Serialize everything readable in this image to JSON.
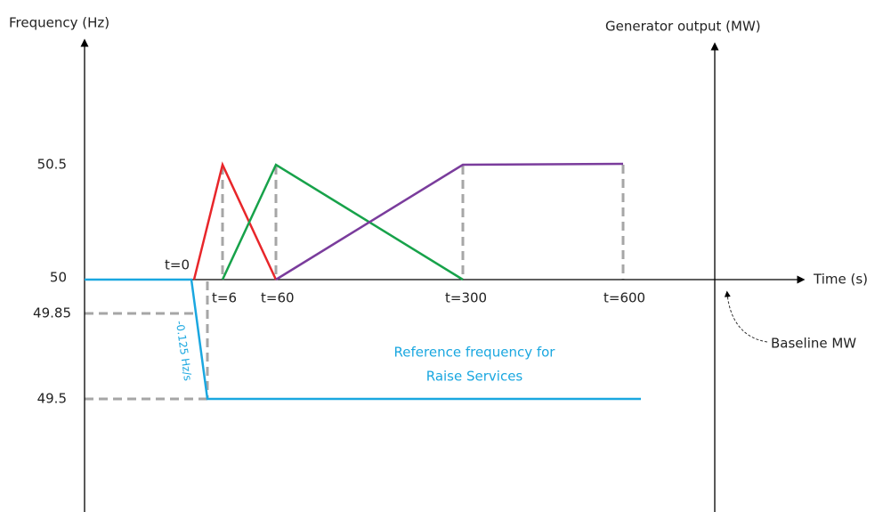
{
  "axes": {
    "left": "Frequency (Hz)",
    "right": "Generator output (MW)",
    "time": "Time (s)"
  },
  "frequency_labels": [
    "50.5",
    "50",
    "49.85",
    "49.5"
  ],
  "time_labels": [
    "t=0",
    "t=6",
    "t=60",
    "t=300",
    "t=600"
  ],
  "annotations": {
    "ramp": "-0.125 Hz/s",
    "reference": [
      "Reference frequency for",
      "Raise Services"
    ],
    "baseline": "Baseline MW"
  }
}
